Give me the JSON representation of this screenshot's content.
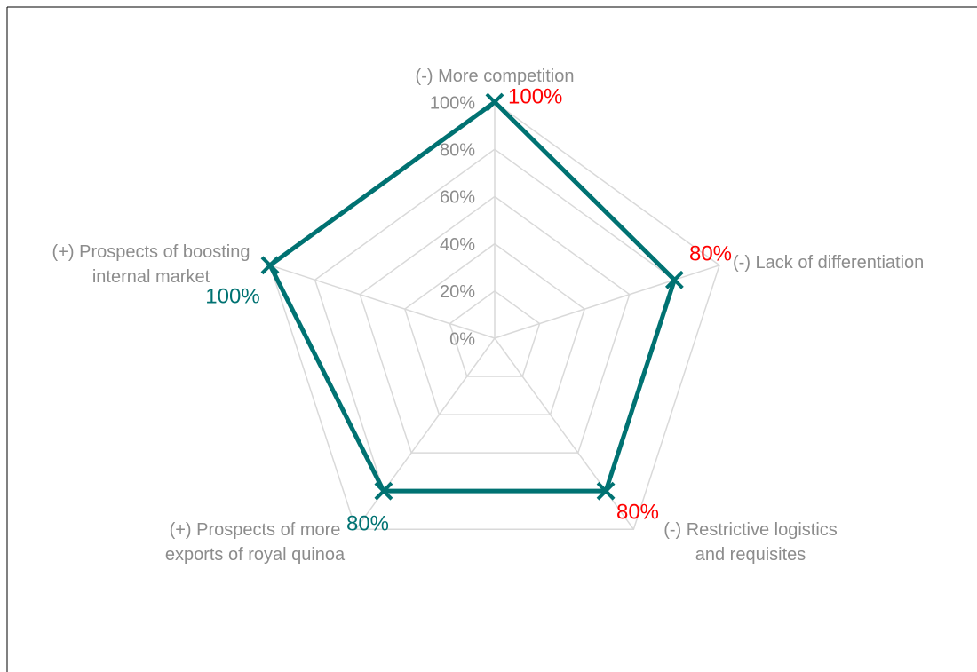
{
  "chart_data": {
    "type": "radar",
    "categories": [
      "(-) More competition",
      "(-) Lack of differentiation",
      "(-) Restrictive logistics\nand requisites",
      "(+) Prospects of more\nexports of royal quinoa",
      "(+) Prospects of boosting\ninternal market"
    ],
    "series": [
      {
        "color": "#007272",
        "values": [
          100,
          80,
          80,
          80,
          100
        ],
        "value_labels": [
          "100%",
          "80%",
          "80%",
          "80%",
          "100%"
        ],
        "label_colors": [
          "#ff0000",
          "#ff0000",
          "#ff0000",
          "#007272",
          "#007272"
        ]
      }
    ],
    "rlim": [
      0,
      100
    ],
    "rticks": [
      {
        "value": 0,
        "label": "0%"
      },
      {
        "value": 20,
        "label": "20%"
      },
      {
        "value": 40,
        "label": "40%"
      },
      {
        "value": 60,
        "label": "60%"
      },
      {
        "value": 80,
        "label": "80%"
      },
      {
        "value": 100,
        "label": "100%"
      }
    ],
    "grid": true
  }
}
